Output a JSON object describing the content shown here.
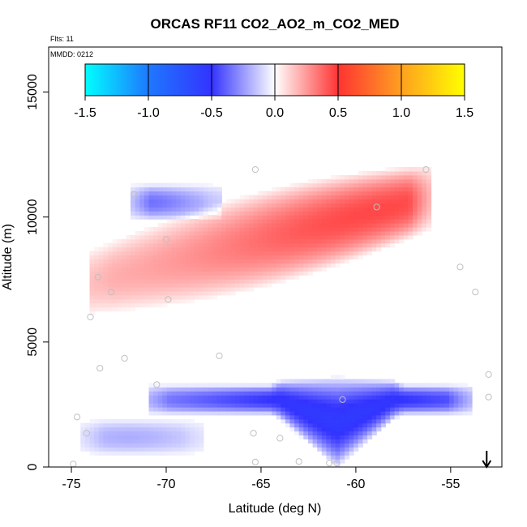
{
  "chart_data": {
    "type": "heatmap",
    "title": "ORCAS RF11 CO2_AO2_m_CO2_MED",
    "flights_label": "Flts: 11",
    "mmdd_label": "MMDD: 0212",
    "xlabel": "Latitude (deg N)",
    "ylabel": "Altitude (m)",
    "xlim": [
      -76.2,
      -52.3
    ],
    "ylim": [
      0,
      16800
    ],
    "xticks": [
      -75,
      -70,
      -65,
      -60,
      -55
    ],
    "xtick_labels": [
      "-75",
      "-70",
      "-65",
      "-60",
      "-55"
    ],
    "yticks": [
      0,
      5000,
      10000,
      15000
    ],
    "ytick_labels": [
      "0",
      "5000",
      "10000",
      "15000"
    ],
    "colorbar": {
      "range": [
        -1.5,
        1.5
      ],
      "ticks": [
        -1.5,
        -1.0,
        -0.5,
        0.0,
        0.5,
        1.0,
        1.5
      ],
      "tick_labels": [
        "-1.5",
        "-1.0",
        "-0.5",
        "0.0",
        "0.5",
        "1.0",
        "1.5"
      ],
      "colors": [
        "#00ffff",
        "#1e78ff",
        "#3333ff",
        "#ffffff",
        "#ff3333",
        "#ffa020",
        "#ffff00"
      ]
    },
    "arrow_marker_latitude": -53.1,
    "anomaly_features": [
      {
        "name": "upper-positive-band",
        "sign": "positive",
        "lat_range": [
          -74,
          -56
        ],
        "alt_range": [
          6500,
          11800
        ],
        "peak_value": 0.45,
        "peak_lat": -59,
        "peak_alt": 10300
      },
      {
        "name": "lower-negative-plume",
        "sign": "negative",
        "lat_range": [
          -71,
          -54
        ],
        "alt_range": [
          800,
          3700
        ],
        "peak_value": -0.55,
        "peak_lat": -61,
        "peak_alt": 2600
      },
      {
        "name": "upper-negative-patch",
        "sign": "negative",
        "lat_range": [
          -72,
          -67
        ],
        "alt_range": [
          10000,
          11200
        ],
        "peak_value": -0.35,
        "peak_lat": -71,
        "peak_alt": 10800
      },
      {
        "name": "surface-negative-strip",
        "sign": "negative",
        "lat_range": [
          -74.5,
          -68
        ],
        "alt_range": [
          600,
          1800
        ],
        "peak_value": -0.2,
        "peak_lat": -72,
        "peak_alt": 1300
      }
    ],
    "sample_points": [
      {
        "lat": -71.7,
        "alt": 10900
      },
      {
        "lat": -70.0,
        "alt": 9100
      },
      {
        "lat": -73.6,
        "alt": 7600
      },
      {
        "lat": -72.9,
        "alt": 7000
      },
      {
        "lat": -69.9,
        "alt": 6700
      },
      {
        "lat": -74.0,
        "alt": 6000
      },
      {
        "lat": -73.5,
        "alt": 3950
      },
      {
        "lat": -72.2,
        "alt": 4350
      },
      {
        "lat": -70.5,
        "alt": 3300
      },
      {
        "lat": -67.2,
        "alt": 4450
      },
      {
        "lat": -74.7,
        "alt": 2000
      },
      {
        "lat": -74.2,
        "alt": 1350
      },
      {
        "lat": -64.0,
        "alt": 1150
      },
      {
        "lat": -65.4,
        "alt": 1350
      },
      {
        "lat": -74.9,
        "alt": 120
      },
      {
        "lat": -65.3,
        "alt": 200
      },
      {
        "lat": -63.0,
        "alt": 220
      },
      {
        "lat": -61.4,
        "alt": 160
      },
      {
        "lat": -61.0,
        "alt": 160
      },
      {
        "lat": -60.7,
        "alt": 2700
      },
      {
        "lat": -65.3,
        "alt": 11900
      },
      {
        "lat": -58.9,
        "alt": 10400
      },
      {
        "lat": -56.3,
        "alt": 11900
      },
      {
        "lat": -54.5,
        "alt": 8000
      },
      {
        "lat": -53.7,
        "alt": 7000
      },
      {
        "lat": -53.0,
        "alt": 3700
      },
      {
        "lat": -53.0,
        "alt": 2800
      }
    ]
  }
}
